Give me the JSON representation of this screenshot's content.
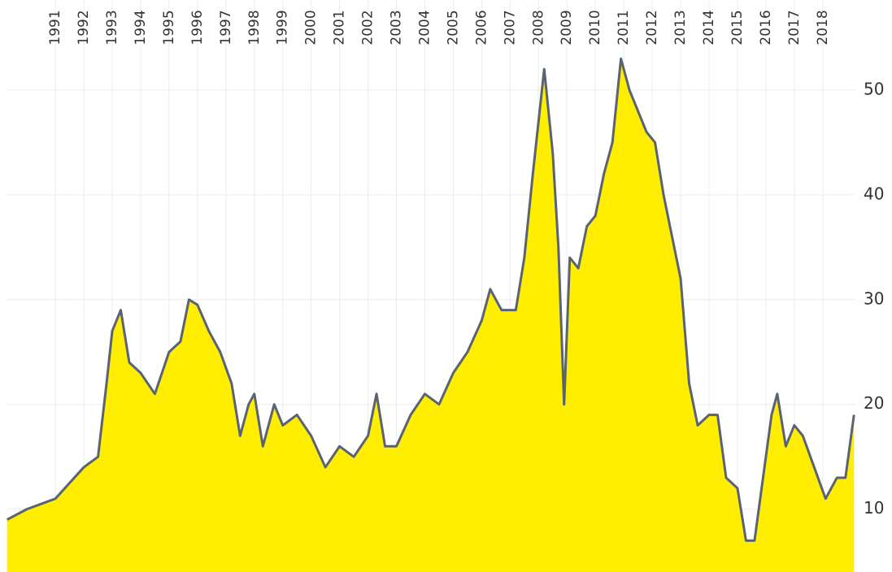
{
  "chart_data": {
    "type": "area",
    "color": "#ffee00",
    "line_color": "#5a6470",
    "grid": true,
    "xlim": [
      1989.28,
      2019.15
    ],
    "ylim": [
      4,
      58.6
    ],
    "xticks": [
      1991,
      1992,
      1993,
      1994,
      1995,
      1996,
      1997,
      1998,
      1999,
      2000,
      2001,
      2002,
      2003,
      2004,
      2005,
      2006,
      2007,
      2008,
      2009,
      2010,
      2011,
      2012,
      2013,
      2014,
      2015,
      2016,
      2017,
      2018
    ],
    "yticks": [
      10,
      20,
      30,
      40,
      50
    ],
    "x": [
      1989.3,
      1990,
      1990.5,
      1991,
      1991.5,
      1992,
      1992.5,
      1992.8,
      1993,
      1993.3,
      1993.6,
      1994,
      1994.5,
      1995,
      1995.4,
      1995.7,
      1996,
      1996.4,
      1996.8,
      1997.2,
      1997.5,
      1997.8,
      1998,
      1998.3,
      1998.7,
      1999,
      1999.5,
      2000,
      2000.5,
      2001,
      2001.5,
      2002,
      2002.3,
      2002.6,
      2003,
      2003.5,
      2004,
      2004.5,
      2005,
      2005.5,
      2006,
      2006.3,
      2006.7,
      2007.2,
      2007.5,
      2007.8,
      2008.2,
      2008.5,
      2008.7,
      2008.9,
      2009.1,
      2009.4,
      2009.7,
      2010,
      2010.3,
      2010.6,
      2010.9,
      2011.2,
      2011.5,
      2011.8,
      2012.1,
      2012.4,
      2012.7,
      2013,
      2013.3,
      2013.6,
      2014,
      2014.3,
      2014.6,
      2015,
      2015.3,
      2015.6,
      2015.9,
      2016.2,
      2016.4,
      2016.7,
      2017,
      2017.3,
      2017.7,
      2018.1,
      2018.5,
      2018.8,
      2019.1
    ],
    "values": [
      9,
      10,
      10.5,
      11,
      12.5,
      14,
      15,
      22,
      27,
      29,
      24,
      23,
      21,
      25,
      26,
      30,
      29.5,
      27,
      25,
      22,
      17,
      20,
      21,
      16,
      20,
      18,
      19,
      17,
      14,
      16,
      15,
      17,
      21,
      16,
      16,
      19,
      21,
      20,
      23,
      25,
      28,
      31,
      29,
      29,
      34,
      42,
      52,
      44,
      35,
      20,
      34,
      33,
      37,
      38,
      42,
      45,
      53,
      50,
      48,
      46,
      45,
      40,
      36,
      32,
      22,
      18,
      19,
      19,
      13,
      12,
      7,
      7,
      13,
      19,
      21,
      16,
      18,
      17,
      14,
      11,
      13,
      13,
      19
    ]
  }
}
